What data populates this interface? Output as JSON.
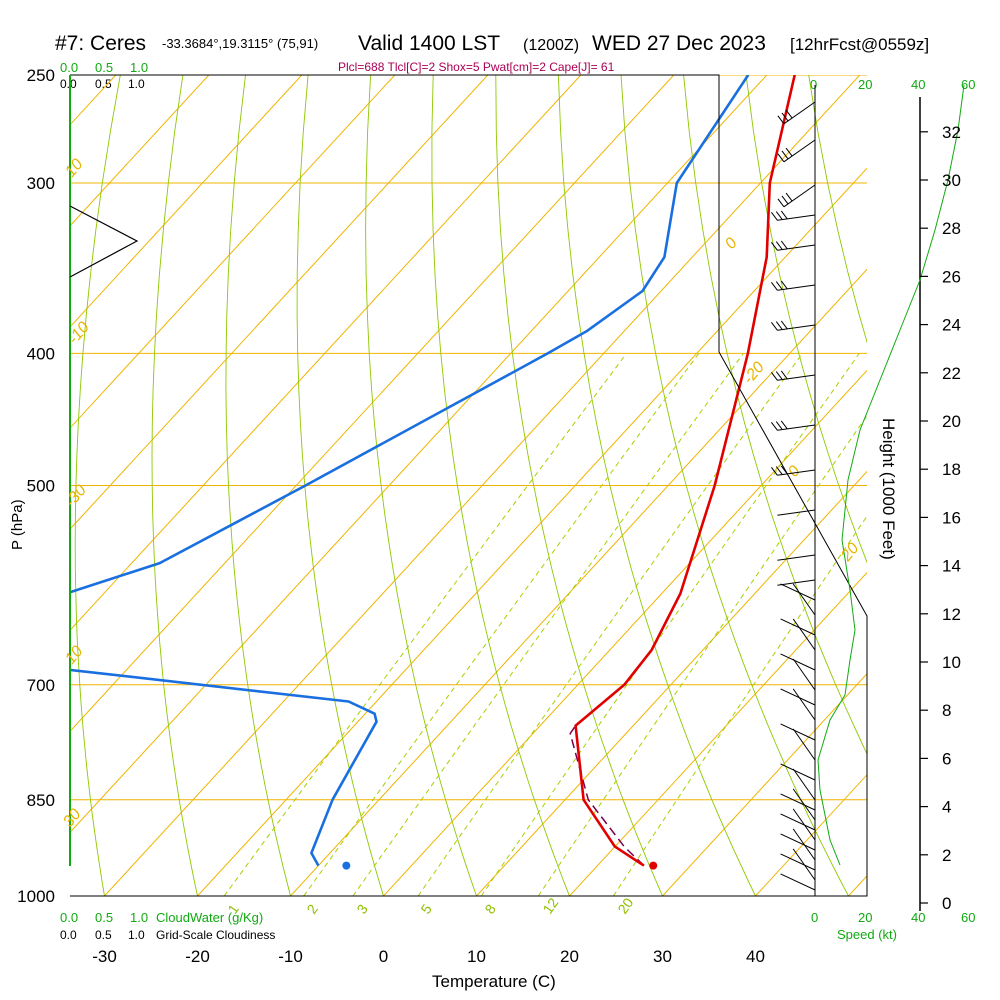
{
  "header": {
    "station": "#7: Ceres",
    "coords": "-33.3684°,19.3115° (75,91)",
    "valid": "Valid 1400 LST",
    "zulu": "(1200Z)",
    "date": "WED 27 Dec 2023",
    "forecast": "[12hrFcst@0559z]",
    "params": "Plcl=688 Tlcl[C]=2 Shox=5 Pwat[cm]=2 Cape[J]= 61"
  },
  "top_scales": {
    "cloudwater_ticks": [
      "0.0",
      "0.5",
      "1.0"
    ],
    "cloudiness_ticks": [
      "0.0",
      "0.5",
      "1.0"
    ],
    "speed_ticks": [
      "0",
      "20",
      "40",
      "60"
    ]
  },
  "bottom_scales": {
    "cloudwater_ticks": [
      "0.0",
      "0.5",
      "1.0"
    ],
    "cloudwater_label": "CloudWater (g/Kg)",
    "cloudiness_ticks": [
      "0.0",
      "0.5",
      "1.0"
    ],
    "cloudiness_label": "Grid-Scale Cloudiness",
    "speed_ticks": [
      "0",
      "20",
      "40",
      "60"
    ],
    "speed_label": "Speed (kt)"
  },
  "colors": {
    "isotherm": "#f0b400",
    "dry_adiabat": "#8fc800",
    "mixing_ratio": "#a6d000",
    "temperature": "#e00000",
    "dewpoint": "#1a6fe0",
    "parcel": "#7a0050",
    "green_axis": "#11aa11",
    "param_text": "#aa0055"
  },
  "chart_data": {
    "type": "skew-t",
    "xlabel": "Temperature (C)",
    "ylabel": "P (hPa)",
    "y2label": "Height (1000 Feet)",
    "x_ticks": [
      -30,
      -20,
      -10,
      0,
      10,
      20,
      30,
      40
    ],
    "p_ticks": [
      250,
      300,
      400,
      500,
      700,
      850,
      1000
    ],
    "height_ticks": [
      0,
      2,
      4,
      6,
      8,
      10,
      12,
      14,
      16,
      18,
      20,
      22,
      24,
      26,
      28,
      30,
      32
    ],
    "isotherm_labels": [
      "10",
      "0",
      "-10",
      "-20",
      "-30",
      "0",
      "10",
      "20",
      "30"
    ],
    "mixing_ratio_labels": [
      "1",
      "2",
      "3",
      "5",
      "8",
      "12",
      "20"
    ],
    "temperature": [
      {
        "p": 250,
        "t": -37
      },
      {
        "p": 300,
        "t": -29
      },
      {
        "p": 340,
        "t": -22
      },
      {
        "p": 400,
        "t": -14.5
      },
      {
        "p": 500,
        "t": -5
      },
      {
        "p": 600,
        "t": 2
      },
      {
        "p": 660,
        "t": 4.5
      },
      {
        "p": 700,
        "t": 5
      },
      {
        "p": 750,
        "t": 3.8
      },
      {
        "p": 850,
        "t": 12
      },
      {
        "p": 920,
        "t": 20
      },
      {
        "p": 950,
        "t": 25
      }
    ],
    "dewpoint": [
      {
        "p": 250,
        "t": -42
      },
      {
        "p": 300,
        "t": -39
      },
      {
        "p": 340,
        "t": -33
      },
      {
        "p": 360,
        "t": -32
      },
      {
        "p": 385,
        "t": -34
      },
      {
        "p": 400,
        "t": -36
      },
      {
        "p": 500,
        "t": -49
      },
      {
        "p": 570,
        "t": -57
      },
      {
        "p": 645,
        "t": -74
      },
      {
        "p": 660,
        "t": -77
      },
      {
        "p": 720,
        "t": -23
      },
      {
        "p": 735,
        "t": -19
      },
      {
        "p": 745,
        "t": -18
      },
      {
        "p": 850,
        "t": -15
      },
      {
        "p": 930,
        "t": -12
      },
      {
        "p": 950,
        "t": -10
      }
    ],
    "parcel": [
      {
        "p": 950,
        "t": 25
      },
      {
        "p": 920,
        "t": 21
      },
      {
        "p": 850,
        "t": 12.5
      },
      {
        "p": 760,
        "t": 4
      },
      {
        "p": 750,
        "t": 3.8
      }
    ],
    "surface_temp": 26,
    "surface_dew": -7
  }
}
